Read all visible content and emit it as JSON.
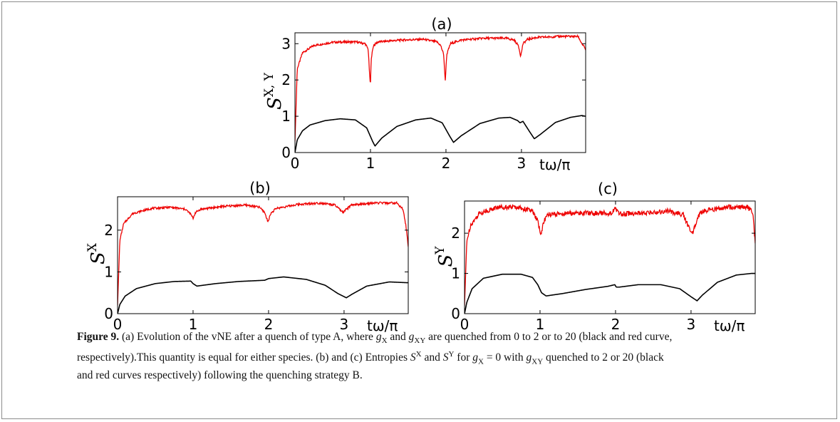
{
  "figure": {
    "caption": {
      "label": "Figure 9.",
      "line1": [
        {
          "t": " (a) Evolution of the vNE after a quench of type A, where "
        },
        {
          "t": "g",
          "i": true
        },
        {
          "t": "X",
          "sub": true
        },
        {
          "t": " and "
        },
        {
          "t": "g",
          "i": true
        },
        {
          "t": "XY",
          "sub": true
        },
        {
          "t": " are quenched from 0 to 2 or to 20 (black and red curve,"
        }
      ],
      "line2": [
        {
          "t": "respectively).This quantity is equal for either species. (b) and (c) Entropies "
        },
        {
          "t": "S",
          "i": true
        },
        {
          "t": "X",
          "sup": true
        },
        {
          "t": " and "
        },
        {
          "t": "S",
          "i": true
        },
        {
          "t": "Y",
          "sup": true
        },
        {
          "t": " for "
        },
        {
          "t": "g",
          "i": true
        },
        {
          "t": "X",
          "sub": true
        },
        {
          "t": " = 0 with "
        },
        {
          "t": "g",
          "i": true
        },
        {
          "t": "XY",
          "sub": true
        },
        {
          "t": " quenched to 2 or 20 (black"
        }
      ],
      "line3": [
        {
          "t": "and red curves respectively) following the quenching strategy B."
        }
      ]
    }
  },
  "chart_data": [
    {
      "type": "line",
      "panel": "(a)",
      "title": "(a)",
      "ylabel": "S",
      "ylabel_sup": "X, Y",
      "xlabel": "tω/π",
      "xlim": [
        0,
        3.85
      ],
      "ylim": [
        0,
        3.3
      ],
      "xticks": [
        0,
        1,
        2,
        3
      ],
      "yticks": [
        0,
        1,
        2,
        3
      ],
      "series": [
        {
          "color": "#ee0000",
          "noise": 0.03,
          "x": [
            0,
            0.03,
            0.1,
            0.25,
            0.5,
            0.8,
            0.93,
            0.97,
            0.99,
            1.0,
            1.01,
            1.04,
            1.1,
            1.4,
            1.7,
            1.88,
            1.93,
            1.97,
            1.99,
            2.01,
            2.06,
            2.2,
            2.5,
            2.8,
            2.9,
            2.96,
            2.99,
            3.02,
            3.08,
            3.2,
            3.5,
            3.75,
            3.8,
            3.85
          ],
          "y": [
            0.3,
            2.3,
            2.75,
            2.95,
            3.04,
            3.05,
            3.0,
            2.85,
            2.1,
            1.85,
            2.6,
            2.95,
            3.05,
            3.1,
            3.12,
            3.05,
            2.95,
            2.7,
            1.95,
            2.7,
            3.0,
            3.1,
            3.15,
            3.15,
            3.1,
            2.95,
            2.65,
            3.0,
            3.12,
            3.17,
            3.2,
            3.2,
            3.0,
            2.85
          ]
        },
        {
          "color": "#000000",
          "noise": 0,
          "x": [
            0,
            0.03,
            0.1,
            0.2,
            0.4,
            0.6,
            0.8,
            0.95,
            1.03,
            1.06,
            1.15,
            1.35,
            1.6,
            1.8,
            1.95,
            2.05,
            2.1,
            2.2,
            2.45,
            2.7,
            2.85,
            2.95,
            2.98,
            3.02,
            3.1,
            3.17,
            3.25,
            3.45,
            3.65,
            3.8,
            3.85
          ],
          "y": [
            0.0,
            0.35,
            0.6,
            0.76,
            0.88,
            0.93,
            0.9,
            0.68,
            0.3,
            0.18,
            0.4,
            0.72,
            0.9,
            0.95,
            0.82,
            0.45,
            0.28,
            0.46,
            0.8,
            0.95,
            0.97,
            0.88,
            0.82,
            0.86,
            0.6,
            0.38,
            0.5,
            0.83,
            0.97,
            1.02,
            1.0
          ]
        }
      ]
    },
    {
      "type": "line",
      "panel": "(b)",
      "title": "(b)",
      "ylabel": "S",
      "ylabel_sup": "X",
      "xlabel": "tω/π",
      "xlim": [
        0,
        3.85
      ],
      "ylim": [
        0,
        2.8
      ],
      "xticks": [
        0,
        1,
        2,
        3
      ],
      "yticks": [
        0,
        1,
        2
      ],
      "series": [
        {
          "color": "#ee0000",
          "noise": 0.025,
          "x": [
            0,
            0.03,
            0.08,
            0.2,
            0.45,
            0.7,
            0.9,
            0.97,
            1.0,
            1.03,
            1.1,
            1.4,
            1.7,
            1.88,
            1.95,
            1.99,
            2.03,
            2.1,
            2.4,
            2.7,
            2.88,
            2.95,
            2.99,
            3.03,
            3.1,
            3.4,
            3.7,
            3.78,
            3.82,
            3.85
          ],
          "y": [
            0.2,
            1.75,
            2.15,
            2.4,
            2.52,
            2.55,
            2.5,
            2.38,
            2.28,
            2.42,
            2.5,
            2.57,
            2.6,
            2.55,
            2.42,
            2.2,
            2.4,
            2.52,
            2.62,
            2.65,
            2.6,
            2.48,
            2.42,
            2.5,
            2.6,
            2.65,
            2.65,
            2.5,
            2.1,
            1.6
          ]
        },
        {
          "color": "#000000",
          "noise": 0,
          "x": [
            0,
            0.03,
            0.1,
            0.25,
            0.5,
            0.75,
            0.97,
            1.0,
            1.05,
            1.3,
            1.6,
            1.95,
            2.0,
            2.2,
            2.5,
            2.75,
            2.92,
            3.03,
            3.1,
            3.3,
            3.6,
            3.85
          ],
          "y": [
            0.0,
            0.22,
            0.42,
            0.6,
            0.72,
            0.77,
            0.78,
            0.72,
            0.66,
            0.72,
            0.77,
            0.8,
            0.84,
            0.88,
            0.82,
            0.68,
            0.48,
            0.38,
            0.46,
            0.66,
            0.76,
            0.74
          ]
        }
      ]
    },
    {
      "type": "line",
      "panel": "(c)",
      "title": "(c)",
      "ylabel": "S",
      "ylabel_sup": "Y",
      "xlabel": "tω/π",
      "xlim": [
        0,
        3.85
      ],
      "ylim": [
        0,
        2.8
      ],
      "xticks": [
        0,
        1,
        2,
        3
      ],
      "yticks": [
        0,
        1,
        2
      ],
      "series": [
        {
          "color": "#ee0000",
          "noise": 0.06,
          "x": [
            0,
            0.03,
            0.08,
            0.2,
            0.45,
            0.7,
            0.9,
            0.97,
            1.01,
            1.05,
            1.1,
            1.4,
            1.7,
            1.95,
            2.0,
            2.05,
            2.4,
            2.7,
            2.9,
            2.98,
            3.02,
            3.08,
            3.15,
            3.5,
            3.75,
            3.82,
            3.85
          ],
          "y": [
            0.2,
            1.8,
            2.2,
            2.5,
            2.65,
            2.65,
            2.55,
            2.3,
            1.95,
            2.3,
            2.45,
            2.5,
            2.5,
            2.5,
            2.62,
            2.48,
            2.5,
            2.55,
            2.45,
            2.1,
            2.0,
            2.35,
            2.55,
            2.65,
            2.65,
            2.5,
            1.7
          ]
        },
        {
          "color": "#000000",
          "noise": 0,
          "x": [
            0,
            0.03,
            0.1,
            0.25,
            0.5,
            0.75,
            0.9,
            0.97,
            1.02,
            1.08,
            1.3,
            1.6,
            1.9,
            1.99,
            2.01,
            2.05,
            2.3,
            2.6,
            2.85,
            3.0,
            3.08,
            3.15,
            3.35,
            3.6,
            3.8,
            3.85
          ],
          "y": [
            0.0,
            0.28,
            0.62,
            0.88,
            0.98,
            0.98,
            0.9,
            0.72,
            0.52,
            0.44,
            0.5,
            0.6,
            0.68,
            0.72,
            0.66,
            0.66,
            0.72,
            0.72,
            0.62,
            0.42,
            0.32,
            0.46,
            0.78,
            0.96,
            1.0,
            1.0
          ]
        }
      ]
    }
  ]
}
